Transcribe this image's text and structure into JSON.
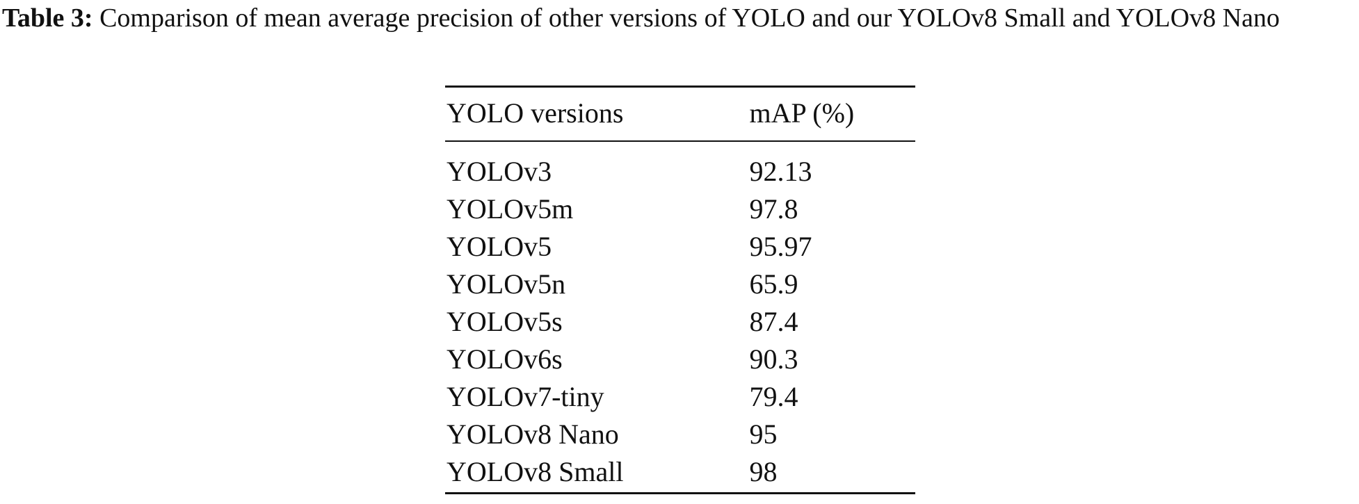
{
  "caption": {
    "label": "Table 3:",
    "text": "Comparison of mean average precision of other versions of YOLO and our YOLOv8 Small and YOLOv8 Nano"
  },
  "table": {
    "headers": [
      "YOLO versions",
      "mAP (%)"
    ],
    "rows": [
      [
        "YOLOv3",
        "92.13"
      ],
      [
        "YOLOv5m",
        "97.8"
      ],
      [
        "YOLOv5",
        "95.97"
      ],
      [
        "YOLOv5n",
        "65.9"
      ],
      [
        "YOLOv5s",
        "87.4"
      ],
      [
        "YOLOv6s",
        "90.3"
      ],
      [
        "YOLOv7-tiny",
        "79.4"
      ],
      [
        "YOLOv8 Nano",
        "95"
      ],
      [
        "YOLOv8 Small",
        "98"
      ]
    ]
  }
}
